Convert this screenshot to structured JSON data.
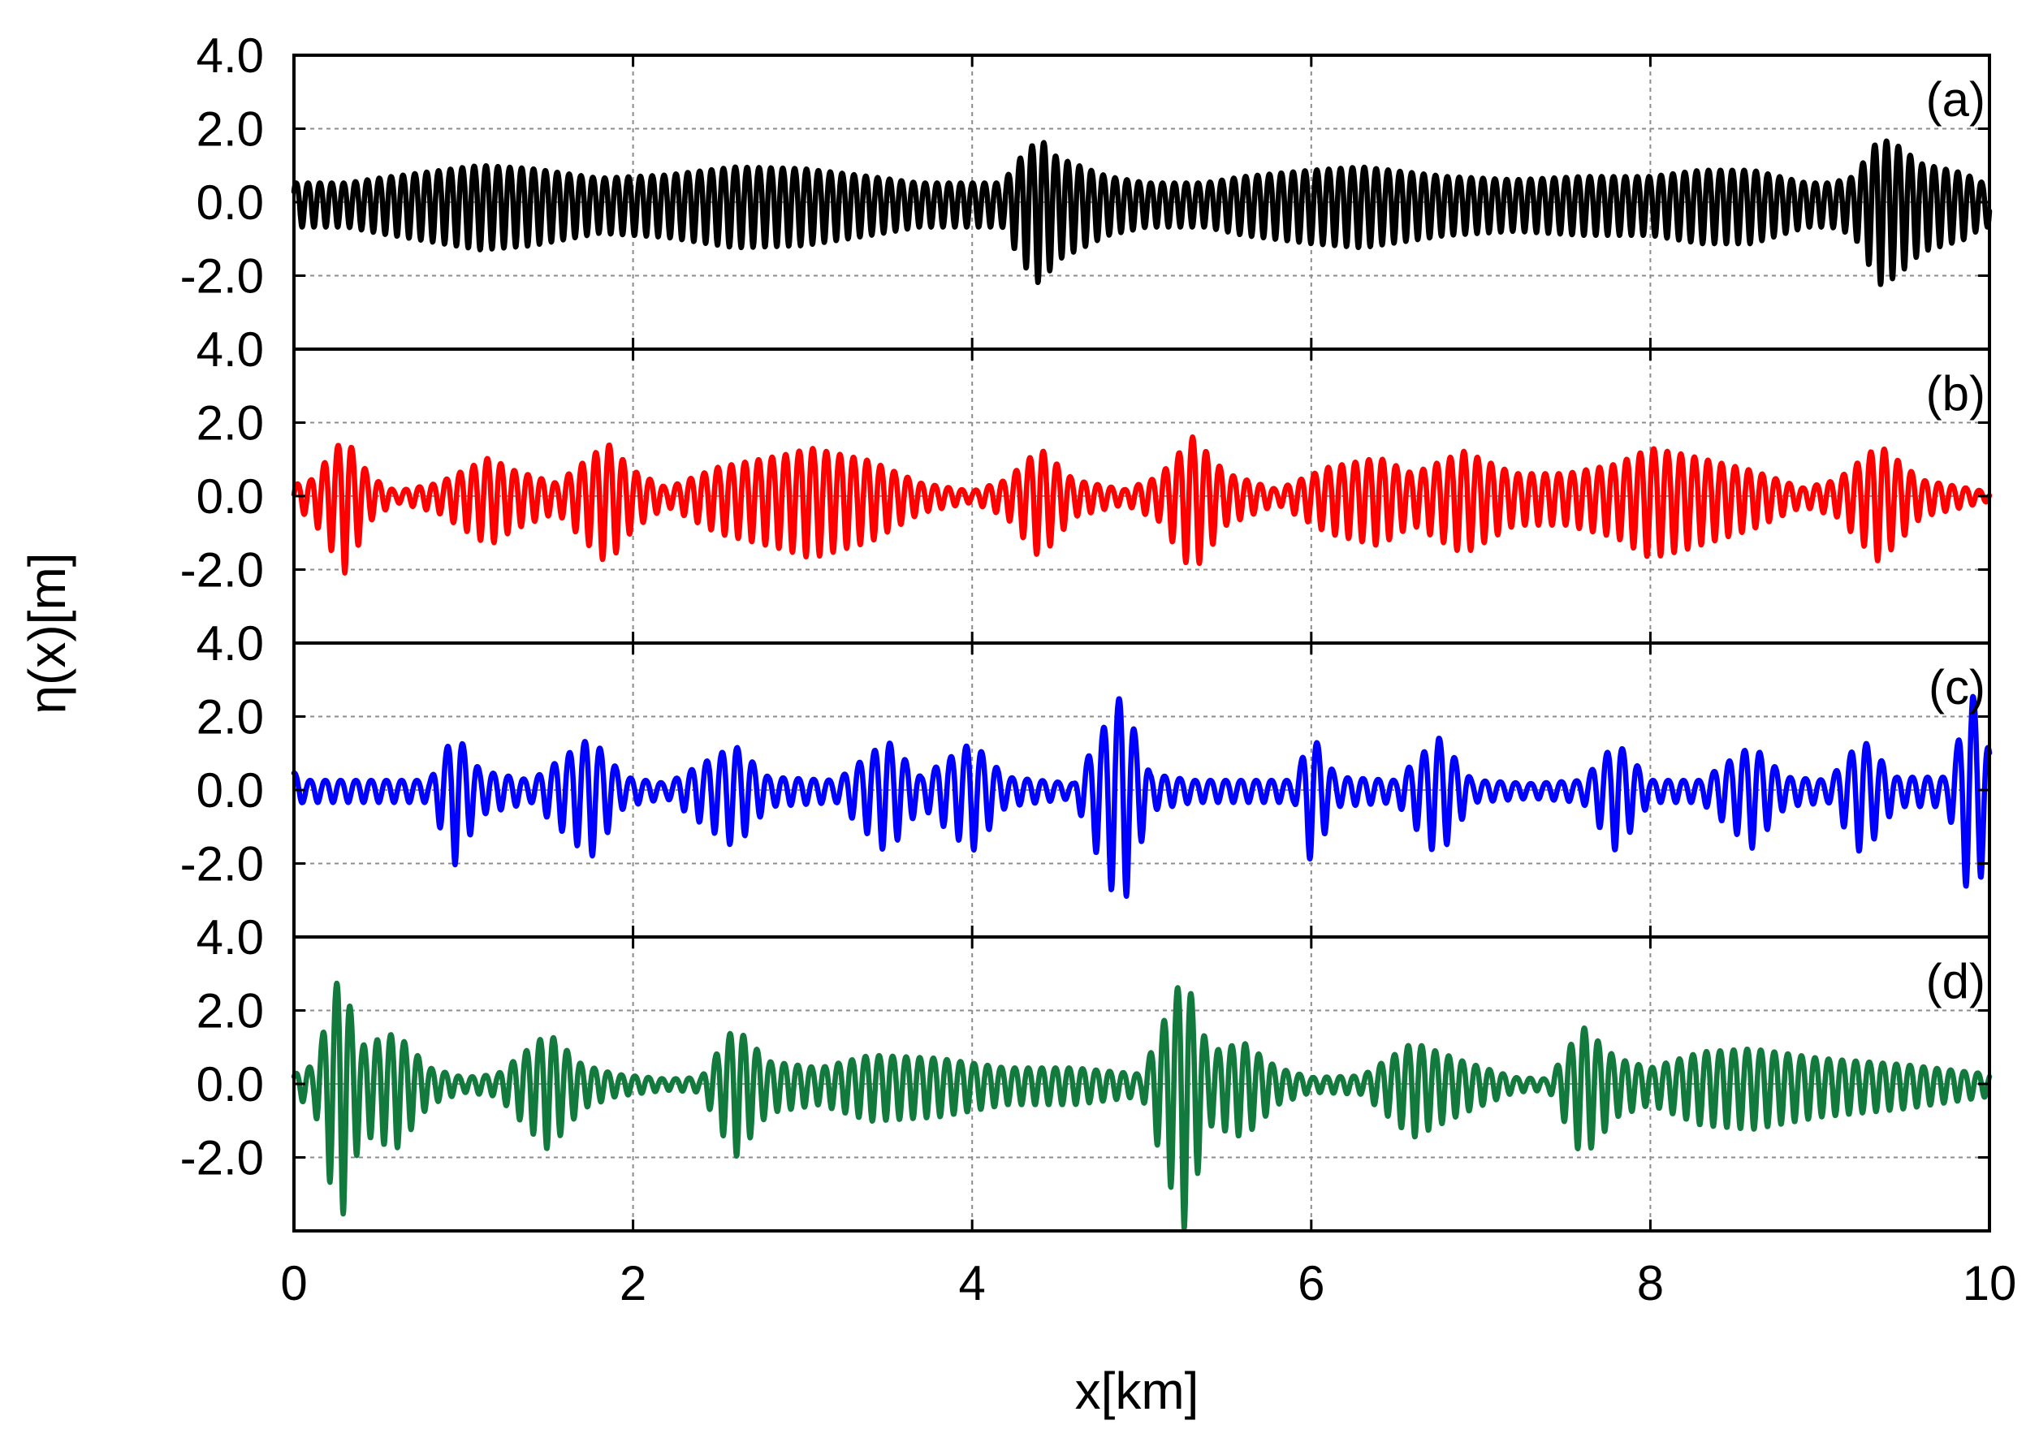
{
  "chart_data": {
    "type": "line",
    "layout": "4 stacked panels sharing x-axis",
    "xlabel": "x[km]",
    "ylabel": "η(x)[m]",
    "xlim": [
      0,
      10
    ],
    "x_ticks": [
      0,
      2,
      4,
      6,
      8,
      10
    ],
    "x_tick_labels": [
      "0",
      "2",
      "4",
      "6",
      "8",
      "10"
    ],
    "grid": true,
    "panels": [
      {
        "label": "(a)",
        "color": "#000000",
        "ylim": [
          -4,
          4
        ],
        "y_ticks": [
          4,
          2,
          0,
          -2
        ],
        "y_tick_labels": [
          "4.0",
          "2.0",
          "0.0",
          "-2.0"
        ],
        "wavelength_km": 0.07,
        "phase": 0.4,
        "base_amplitude": 0.6,
        "envelope": [
          [
            0,
            0.35
          ],
          [
            0.5,
            0.75
          ],
          [
            1.1,
            1.15
          ],
          [
            1.4,
            1.05
          ],
          [
            1.8,
            0.75
          ],
          [
            2.2,
            0.85
          ],
          [
            2.6,
            1.1
          ],
          [
            3.0,
            1.05
          ],
          [
            3.4,
            0.8
          ],
          [
            3.9,
            0.45
          ],
          [
            4.15,
            0.4
          ],
          [
            4.3,
            1.5
          ],
          [
            4.4,
            2.0
          ],
          [
            4.5,
            1.4
          ],
          [
            4.8,
            0.8
          ],
          [
            5.2,
            0.45
          ],
          [
            5.6,
            0.8
          ],
          [
            6.0,
            1.0
          ],
          [
            6.3,
            1.1
          ],
          [
            6.8,
            0.8
          ],
          [
            7.2,
            0.7
          ],
          [
            7.6,
            0.8
          ],
          [
            8.0,
            0.8
          ],
          [
            8.3,
            1.0
          ],
          [
            8.6,
            1.0
          ],
          [
            9.0,
            0.5
          ],
          [
            9.2,
            0.8
          ],
          [
            9.35,
            2.0
          ],
          [
            9.45,
            1.8
          ],
          [
            9.6,
            1.2
          ],
          [
            9.85,
            0.9
          ],
          [
            10,
            0.5
          ]
        ]
      },
      {
        "label": "(b)",
        "color": "#ff0000",
        "ylim": [
          -4,
          4
        ],
        "y_ticks": [
          4,
          2,
          0,
          -2
        ],
        "y_tick_labels": [
          "4.0",
          "2.0",
          "0.0",
          "-2.0"
        ],
        "wavelength_km": 0.08,
        "phase": 0.0,
        "base_amplitude": 0.12,
        "envelope": [
          [
            0,
            0.35
          ],
          [
            0.1,
            0.5
          ],
          [
            0.3,
            1.85
          ],
          [
            0.45,
            0.6
          ],
          [
            0.6,
            0.15
          ],
          [
            0.85,
            0.4
          ],
          [
            1.15,
            1.2
          ],
          [
            1.3,
            0.8
          ],
          [
            1.55,
            0.4
          ],
          [
            1.85,
            1.65
          ],
          [
            2.0,
            0.8
          ],
          [
            2.2,
            0.25
          ],
          [
            2.5,
            0.9
          ],
          [
            2.9,
            1.3
          ],
          [
            3.05,
            1.5
          ],
          [
            3.4,
            1.1
          ],
          [
            3.7,
            0.4
          ],
          [
            4.0,
            0.15
          ],
          [
            4.2,
            0.5
          ],
          [
            4.4,
            1.5
          ],
          [
            4.6,
            0.5
          ],
          [
            4.9,
            0.2
          ],
          [
            5.1,
            0.6
          ],
          [
            5.3,
            1.85
          ],
          [
            5.5,
            0.7
          ],
          [
            5.8,
            0.2
          ],
          [
            6.1,
            0.9
          ],
          [
            6.4,
            1.2
          ],
          [
            6.6,
            0.7
          ],
          [
            6.9,
            1.4
          ],
          [
            7.2,
            0.7
          ],
          [
            7.5,
            0.7
          ],
          [
            7.8,
            1.0
          ],
          [
            8.0,
            1.5
          ],
          [
            8.2,
            1.3
          ],
          [
            8.6,
            0.8
          ],
          [
            8.9,
            0.25
          ],
          [
            9.1,
            0.5
          ],
          [
            9.35,
            1.6
          ],
          [
            9.6,
            0.5
          ],
          [
            10,
            0.12
          ]
        ]
      },
      {
        "label": "(c)",
        "color": "#0000ff",
        "ylim": [
          -4,
          4
        ],
        "y_ticks": [
          4,
          2,
          0,
          -2
        ],
        "y_tick_labels": [
          "4.0",
          "2.0",
          "0.0",
          "-2.0"
        ],
        "wavelength_km": 0.09,
        "phase": 1.2,
        "base_amplitude": 0.1,
        "envelope": [
          [
            0,
            0.55
          ],
          [
            0.05,
            0.3
          ],
          [
            0.5,
            0.3
          ],
          [
            0.8,
            0.3
          ],
          [
            0.95,
            1.8
          ],
          [
            1.1,
            0.6
          ],
          [
            1.4,
            0.3
          ],
          [
            1.75,
            1.65
          ],
          [
            1.95,
            0.4
          ],
          [
            2.2,
            0.2
          ],
          [
            2.6,
            1.4
          ],
          [
            2.8,
            0.4
          ],
          [
            3.2,
            0.3
          ],
          [
            3.5,
            1.55
          ],
          [
            3.7,
            0.4
          ],
          [
            4.0,
            1.5
          ],
          [
            4.2,
            0.4
          ],
          [
            4.6,
            0.2
          ],
          [
            4.88,
            3.0
          ],
          [
            5.05,
            0.5
          ],
          [
            5.3,
            0.3
          ],
          [
            5.9,
            0.3
          ],
          [
            6.0,
            1.8
          ],
          [
            6.15,
            0.4
          ],
          [
            6.5,
            0.3
          ],
          [
            6.75,
            1.65
          ],
          [
            6.95,
            0.3
          ],
          [
            7.3,
            0.2
          ],
          [
            7.6,
            0.3
          ],
          [
            7.8,
            1.5
          ],
          [
            8.0,
            0.3
          ],
          [
            8.3,
            0.3
          ],
          [
            8.6,
            1.4
          ],
          [
            8.8,
            0.4
          ],
          [
            9.05,
            0.3
          ],
          [
            9.25,
            1.6
          ],
          [
            9.45,
            0.4
          ],
          [
            9.75,
            0.4
          ],
          [
            9.9,
            3.0
          ],
          [
            10,
            1.2
          ]
        ]
      },
      {
        "label": "(d)",
        "color": "#117a3c",
        "ylim": [
          -4,
          4
        ],
        "y_ticks": [
          4,
          2,
          0,
          -2
        ],
        "y_tick_labels": [
          "4.0",
          "2.0",
          "0.0",
          "-2.0"
        ],
        "wavelength_km": 0.08,
        "phase": 0.7,
        "base_amplitude": 0.1,
        "envelope": [
          [
            0,
            0.3
          ],
          [
            0.12,
            0.6
          ],
          [
            0.27,
            3.5
          ],
          [
            0.4,
            1.2
          ],
          [
            0.6,
            1.6
          ],
          [
            0.8,
            0.5
          ],
          [
            1.0,
            0.2
          ],
          [
            1.2,
            0.3
          ],
          [
            1.5,
            1.6
          ],
          [
            1.7,
            0.6
          ],
          [
            1.9,
            0.3
          ],
          [
            2.2,
            0.15
          ],
          [
            2.4,
            0.2
          ],
          [
            2.6,
            1.8
          ],
          [
            2.8,
            0.7
          ],
          [
            3.1,
            0.5
          ],
          [
            3.4,
            0.9
          ],
          [
            3.8,
            0.8
          ],
          [
            4.2,
            0.5
          ],
          [
            4.6,
            0.5
          ],
          [
            5.0,
            0.3
          ],
          [
            5.25,
            3.5
          ],
          [
            5.4,
            1.0
          ],
          [
            5.6,
            1.3
          ],
          [
            5.8,
            0.5
          ],
          [
            6.0,
            0.2
          ],
          [
            6.3,
            0.25
          ],
          [
            6.6,
            1.3
          ],
          [
            6.9,
            0.7
          ],
          [
            7.2,
            0.2
          ],
          [
            7.4,
            0.15
          ],
          [
            7.6,
            1.8
          ],
          [
            7.8,
            0.8
          ],
          [
            8.0,
            0.5
          ],
          [
            8.3,
            1.0
          ],
          [
            8.6,
            1.1
          ],
          [
            9.0,
            0.8
          ],
          [
            9.5,
            0.6
          ],
          [
            10,
            0.3
          ]
        ]
      }
    ]
  }
}
